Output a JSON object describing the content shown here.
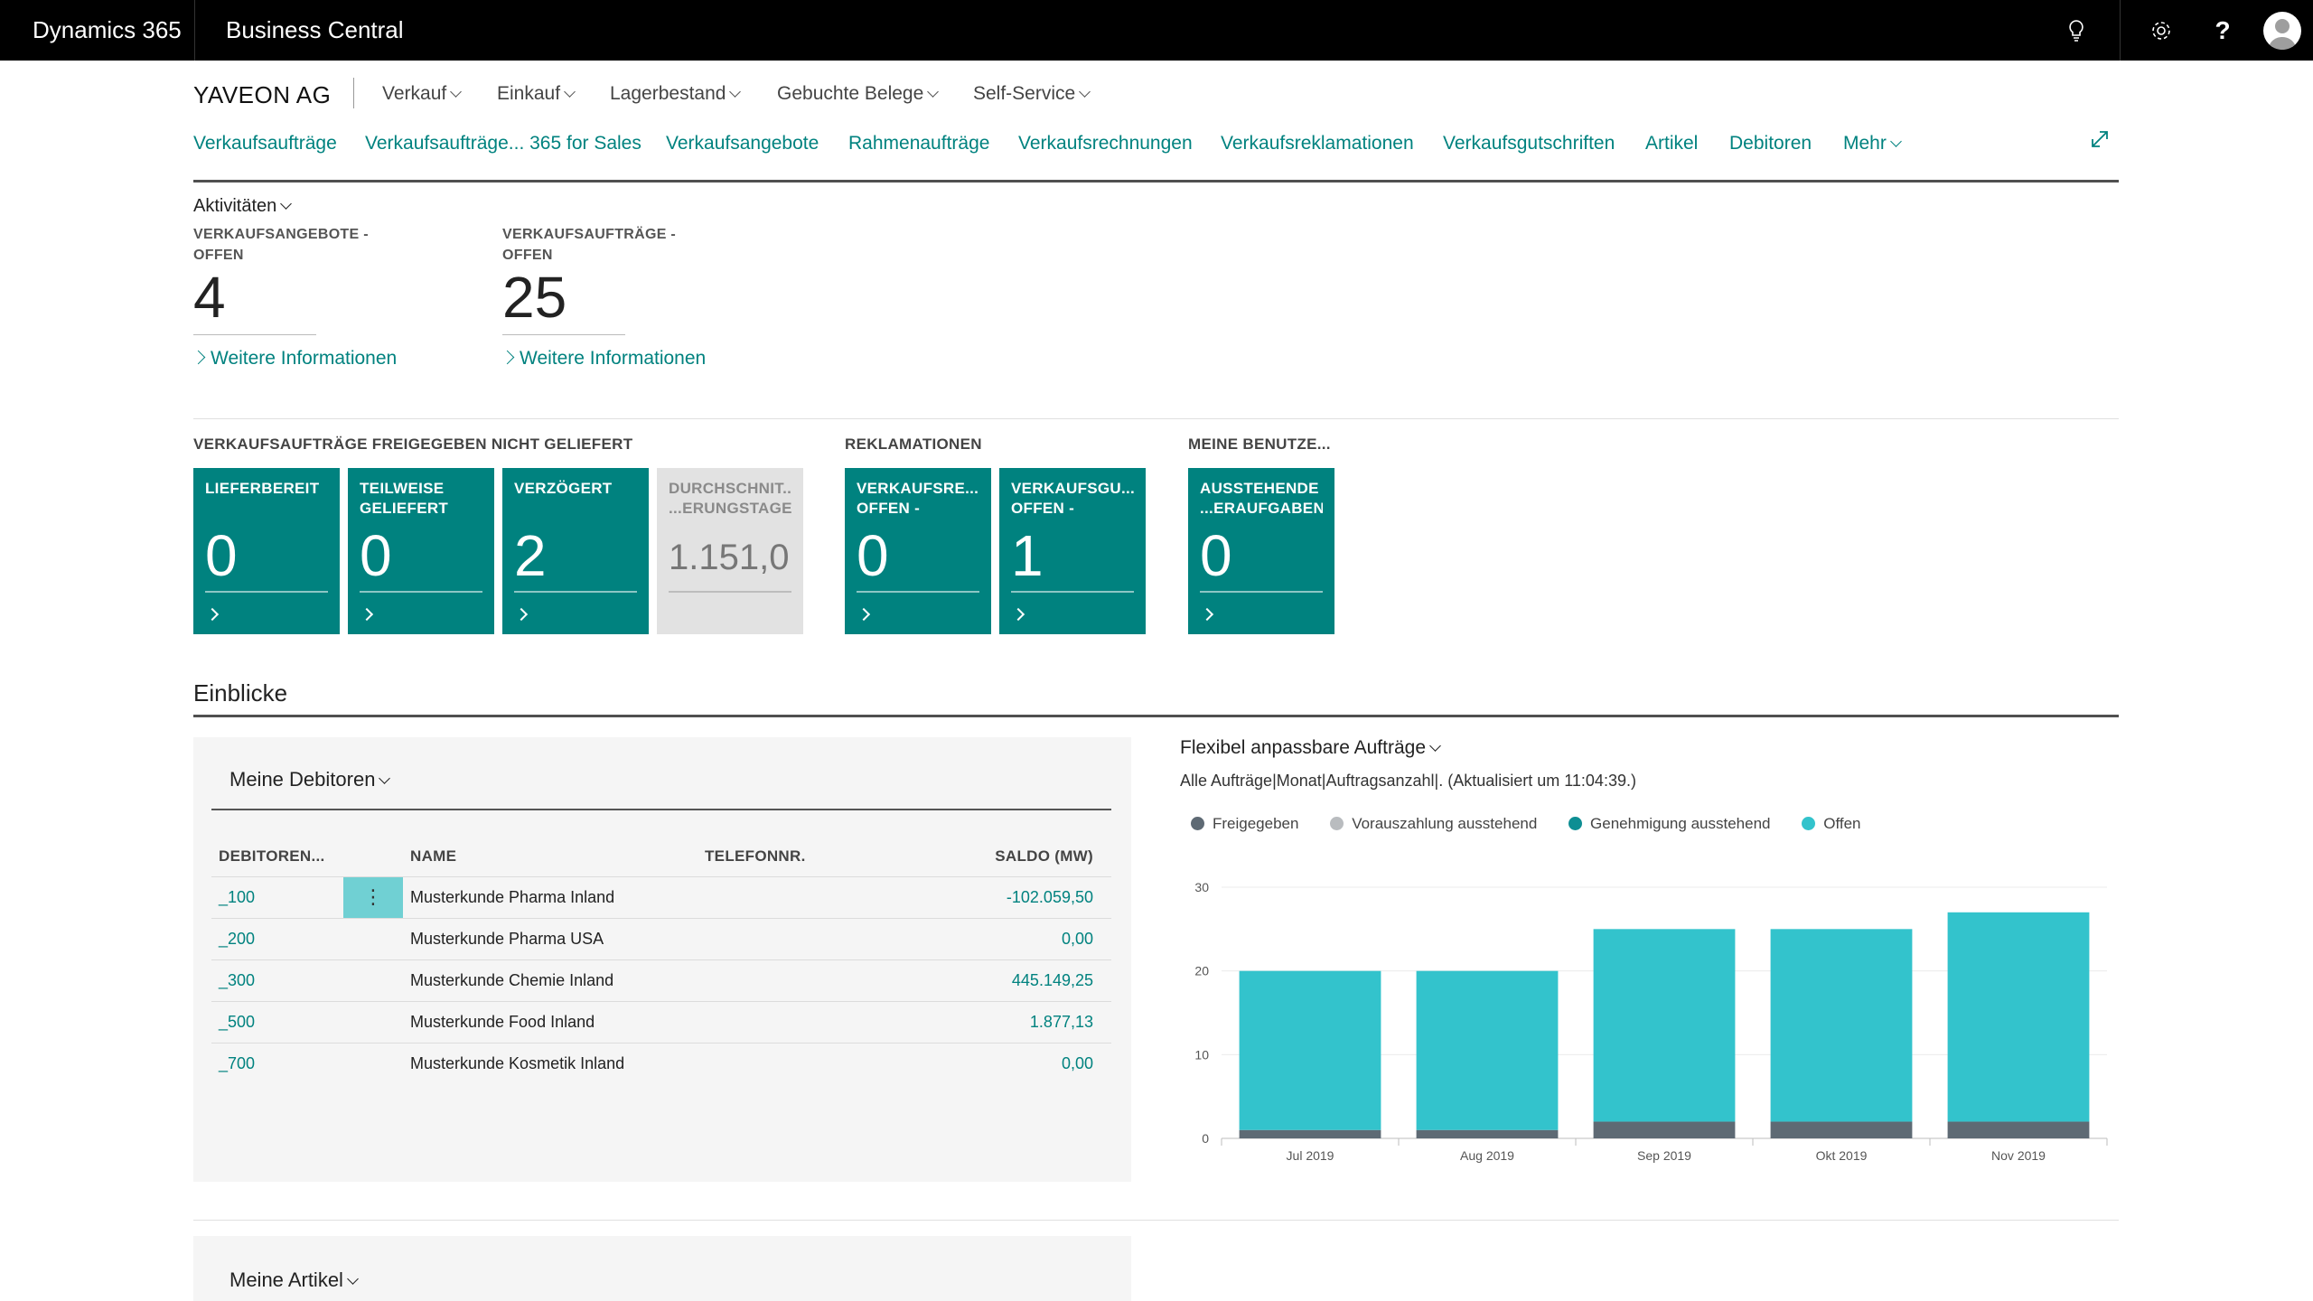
{
  "topbar": {
    "brand": "Dynamics 365",
    "product": "Business Central",
    "icons": [
      "lightbulb-icon",
      "gear-icon",
      "help-icon",
      "avatar-icon"
    ]
  },
  "nav": {
    "company": "YAVEON AG",
    "menus": [
      "Verkauf",
      "Einkauf",
      "Lagerbestand",
      "Gebuchte Belege",
      "Self-Service"
    ],
    "links": [
      "Verkaufsaufträge",
      "Verkaufsaufträge... 365 for Sales",
      "Verkaufsangebote",
      "Rahmenaufträge",
      "Verkaufsrechnungen",
      "Verkaufsreklamationen",
      "Verkaufsgutschriften",
      "Artikel",
      "Debitoren"
    ],
    "more": "Mehr"
  },
  "activities": {
    "title": "Aktivitäten",
    "cues": [
      {
        "caption1": "VERKAUFSANGEBOTE -",
        "caption2": "OFFEN",
        "value": "4",
        "more": "Weitere Informationen"
      },
      {
        "caption1": "VERKAUFSAUFTRÄGE -",
        "caption2": "OFFEN",
        "value": "25",
        "more": "Weitere Informationen"
      }
    ]
  },
  "tile_groups": [
    {
      "title": "VERKAUFSAUFTRÄGE FREIGEGEBEN NICHT GELIEFERT",
      "tiles": [
        {
          "caption": "LIEFERBEREIT",
          "caption2": "",
          "value": "0"
        },
        {
          "caption": "TEILWEISE",
          "caption2": "GELIEFERT",
          "value": "0"
        },
        {
          "caption": "VERZÖGERT",
          "caption2": "",
          "value": "2"
        },
        {
          "caption": "DURCHSCHNIT...",
          "caption2": "...ERUNGSTAGE",
          "value": "1.151,0"
        }
      ]
    },
    {
      "title": "REKLAMATIONEN",
      "tiles": [
        {
          "caption": "VERKAUFSRE...",
          "caption2": "OFFEN -",
          "value": "0"
        },
        {
          "caption": "VERKAUFSGU...",
          "caption2": "OFFEN -",
          "value": "1"
        }
      ]
    },
    {
      "title": "MEINE BENUTZE...",
      "tiles": [
        {
          "caption": "AUSSTEHENDE",
          "caption2": "...ERAUFGABEN",
          "value": "0"
        }
      ]
    }
  ],
  "insights": {
    "title": "Einblicke",
    "debitoren": {
      "title": "Meine Debitoren",
      "columns": [
        "DEBITOREN...",
        "NAME",
        "TELEFONNR.",
        "SALDO (MW)"
      ],
      "rows": [
        {
          "no": "_100",
          "name": "Musterkunde Pharma Inland",
          "phone": "",
          "balance": "-102.059,50"
        },
        {
          "no": "_200",
          "name": "Musterkunde Pharma USA",
          "phone": "",
          "balance": "0,00"
        },
        {
          "no": "_300",
          "name": "Musterkunde Chemie Inland",
          "phone": "",
          "balance": "445.149,25"
        },
        {
          "no": "_500",
          "name": "Musterkunde Food Inland",
          "phone": "",
          "balance": "1.877,13"
        },
        {
          "no": "_700",
          "name": "Musterkunde Kosmetik Inland",
          "phone": "",
          "balance": "0,00"
        }
      ],
      "row_menu_glyph": "⋮"
    },
    "artikel": {
      "title": "Meine Artikel"
    }
  },
  "chart_data": {
    "type": "bar",
    "stacked": true,
    "title": "Flexibel anpassbare Aufträge",
    "subtitle": "Alle Aufträge|Monat|Auftragsanzahl|. (Aktualisiert um 11:04:39.)",
    "categories": [
      "Jul 2019",
      "Aug 2019",
      "Sep 2019",
      "Okt 2019",
      "Nov 2019"
    ],
    "series": [
      {
        "name": "Freigegeben",
        "color": "#5e6a74",
        "values": [
          1,
          1,
          2,
          2,
          2
        ]
      },
      {
        "name": "Vorauszahlung ausstehend",
        "color": "#b9bcbf",
        "values": [
          0,
          0,
          0,
          0,
          0
        ]
      },
      {
        "name": "Genehmigung ausstehend",
        "color": "#0e8e93",
        "values": [
          0,
          0,
          0,
          0,
          0
        ]
      },
      {
        "name": "Offen",
        "color": "#33c3cc",
        "values": [
          19,
          19,
          23,
          23,
          25
        ]
      }
    ],
    "ylim": [
      0,
      30
    ],
    "yticks": [
      0,
      10,
      20,
      30
    ],
    "grid": true,
    "legend": "top"
  },
  "colors": {
    "accent": "#00827f",
    "tile": "#00827f",
    "topbar": "#000000"
  }
}
